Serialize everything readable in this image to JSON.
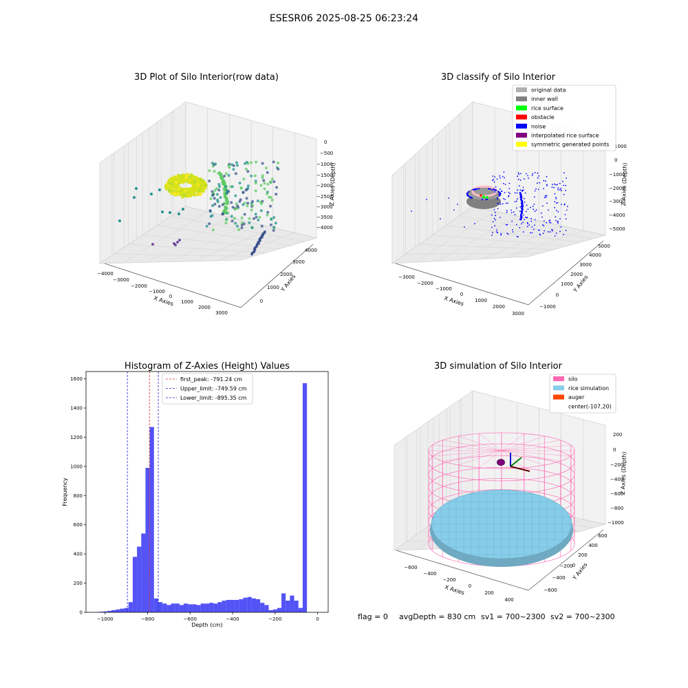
{
  "suptitle": "ESESR06 2025-08-25 06:23:24",
  "footer": {
    "flag": "flag = 0",
    "avg_depth": "avgDepth = 830 cm",
    "sv1": "sv1 = 700~2300",
    "sv2": "sv2 = 700~2300"
  },
  "colors": {
    "histogram_bar": "#4a4af5",
    "first_peak_line": "#e02020",
    "limit_lines": "#1a1ae0",
    "silo": "#ff69b4",
    "rice_simulation": "#87ceeb",
    "auger": "#ff4500",
    "inner_wall": "#808080",
    "rice_surface": "#00ff00",
    "obstacle": "#ff0000",
    "noise": "#0000ff",
    "interpolated_rice_surface": "#800080",
    "symmetric_generated_points": "#ffff00",
    "original_data": "#b0b0b0"
  },
  "chart_data": [
    {
      "type": "scatter",
      "title": "3D Plot of Silo Interior(row data)",
      "xlabel": "X Axies",
      "ylabel": "Y Axies",
      "zlabel": "Z Axies (Depth)",
      "x_ticks": [
        "−4000",
        "−3000",
        "−2000",
        "−1000",
        "0",
        "1000",
        "2000",
        "3000"
      ],
      "y_ticks": [
        "0",
        "1000",
        "2000",
        "3000",
        "4000"
      ],
      "z_ticks": [
        "0",
        "−500",
        "−1000",
        "−1500",
        "−2000",
        "−2500",
        "−3000",
        "−3500",
        "−4000"
      ],
      "colormap": "viridis"
    },
    {
      "type": "scatter",
      "title": "3D classify of Silo Interior",
      "xlabel": "X Axies",
      "ylabel": "Y Axies",
      "zlabel": "Z Axies (Depth)",
      "x_ticks": [
        "−3000",
        "−2000",
        "−1000",
        "0",
        "1000",
        "2000",
        "3000"
      ],
      "y_ticks": [
        "−1000",
        "0",
        "1000",
        "2000",
        "3000",
        "4000",
        "5000"
      ],
      "z_ticks": [
        "1000",
        "0",
        "−1000",
        "−2000",
        "−3000",
        "−4000",
        "−5000"
      ],
      "legend": [
        "original data",
        "inner wall",
        "rice surface",
        "obstacle",
        "noise",
        "interpolated rice surface",
        "symmetric generated points"
      ],
      "legend_position": "top-right"
    },
    {
      "type": "bar",
      "title": "Histogram of Z-Axies (Height) Values",
      "xlabel": "Depth (cm)",
      "ylabel": "Frequency",
      "xlim": [
        -1090,
        50
      ],
      "ylim": [
        0,
        1650
      ],
      "x_ticks": [
        -1000,
        -800,
        -600,
        -400,
        -200,
        0
      ],
      "x_tick_labels": [
        "−1000",
        "−800",
        "−600",
        "−400",
        "−200",
        "0"
      ],
      "y_ticks": [
        0,
        200,
        400,
        600,
        800,
        1000,
        1200,
        1400,
        1600
      ],
      "bin_width": 20,
      "bin_starts": [
        -1050,
        -1030,
        -1010,
        -990,
        -970,
        -950,
        -930,
        -910,
        -890,
        -870,
        -850,
        -830,
        -810,
        -790,
        -770,
        -750,
        -730,
        -710,
        -690,
        -670,
        -650,
        -630,
        -610,
        -590,
        -570,
        -550,
        -530,
        -510,
        -490,
        -470,
        -450,
        -430,
        -410,
        -390,
        -370,
        -350,
        -330,
        -310,
        -290,
        -270,
        -250,
        -230,
        -210,
        -190,
        -170,
        -150,
        -130,
        -110,
        -90,
        -70,
        -50,
        -30,
        -10
      ],
      "values": [
        2,
        4,
        6,
        10,
        15,
        20,
        25,
        30,
        70,
        380,
        450,
        540,
        990,
        1270,
        95,
        70,
        60,
        50,
        60,
        60,
        50,
        60,
        55,
        55,
        50,
        60,
        60,
        65,
        60,
        70,
        80,
        85,
        85,
        85,
        90,
        100,
        105,
        95,
        90,
        65,
        50,
        15,
        20,
        30,
        130,
        80,
        115,
        80,
        30,
        1570,
        0,
        0,
        0
      ],
      "vlines": [
        {
          "label": "first_peak: -791.24 cm",
          "x": -791.24,
          "color_key": "first_peak_line"
        },
        {
          "label": "Upper_limit: -749.59 cm",
          "x": -749.59,
          "color_key": "limit_lines"
        },
        {
          "label": "Lower_limit: -895.35 cm",
          "x": -895.35,
          "color_key": "limit_lines"
        }
      ],
      "legend_position": "top-center"
    },
    {
      "type": "surface",
      "title": "3D simulation of Silo Interior",
      "xlabel": "X Axies",
      "ylabel": "Y Axies",
      "zlabel": "Z Axies (Depth)",
      "x_ticks": [
        "−600",
        "−400",
        "−200",
        "0",
        "200",
        "400"
      ],
      "y_ticks": [
        "−600",
        "−400",
        "−200",
        "0",
        "200",
        "400",
        "600"
      ],
      "z_ticks": [
        "200",
        "0",
        "−200",
        "−400",
        "−600",
        "−800",
        "−1000"
      ],
      "legend": [
        "silo",
        "rice simulation",
        "auger",
        "center(-107,20)"
      ],
      "legend_position": "top-right",
      "center": [
        -107,
        20
      ]
    }
  ]
}
